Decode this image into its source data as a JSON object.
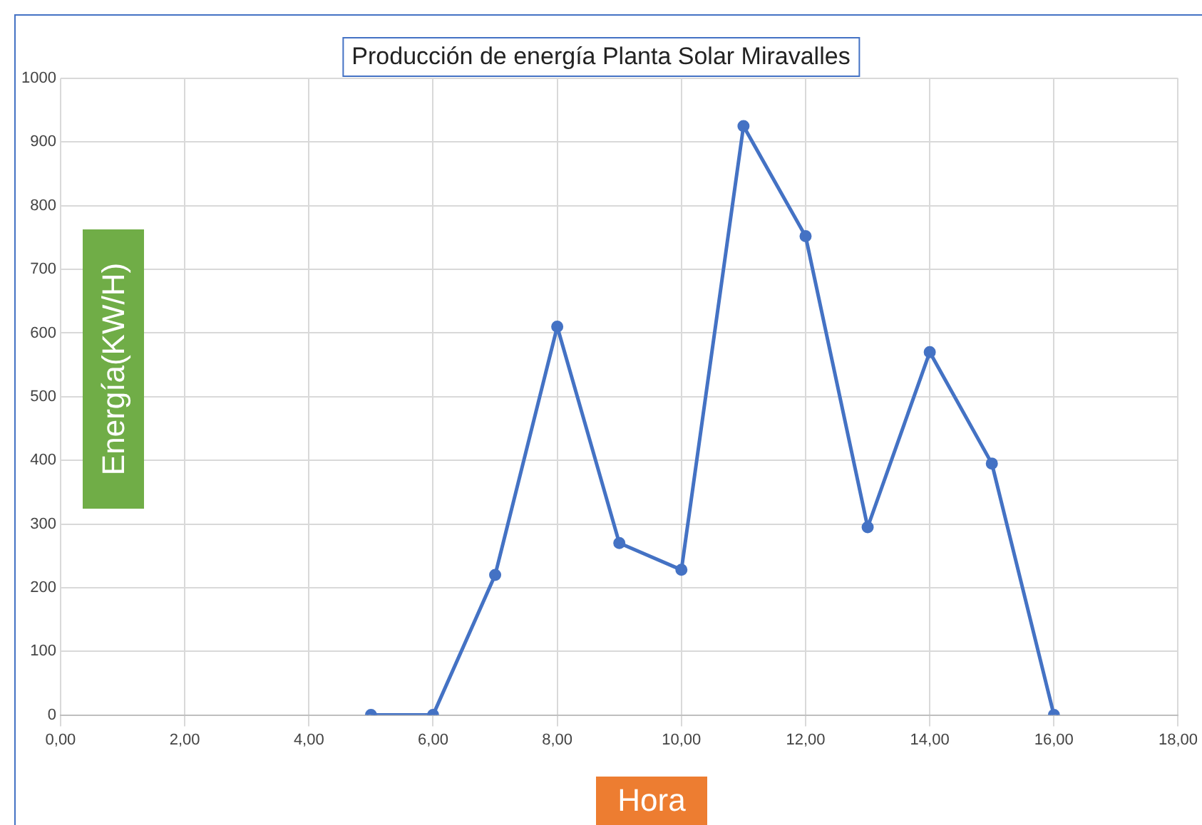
{
  "chart_data": {
    "type": "line",
    "title": "Producción de energía Planta Solar Miravalles",
    "xlabel": "Hora",
    "ylabel": "Energía(KW/H)",
    "x": [
      5,
      6,
      7,
      8,
      9,
      10,
      11,
      12,
      13,
      14,
      15,
      16
    ],
    "series": [
      {
        "color": "#4472c4",
        "values": [
          0,
          0,
          220,
          610,
          270,
          228,
          925,
          752,
          295,
          570,
          395,
          0
        ]
      }
    ],
    "xlim": [
      0,
      18
    ],
    "xticks": [
      {
        "value": 0,
        "label": "0,00"
      },
      {
        "value": 2,
        "label": "2,00"
      },
      {
        "value": 4,
        "label": "4,00"
      },
      {
        "value": 6,
        "label": "6,00"
      },
      {
        "value": 8,
        "label": "8,00"
      },
      {
        "value": 10,
        "label": "10,00"
      },
      {
        "value": 12,
        "label": "12,00"
      },
      {
        "value": 14,
        "label": "14,00"
      },
      {
        "value": 16,
        "label": "16,00"
      },
      {
        "value": 18,
        "label": "18,00"
      }
    ],
    "ylim": [
      0,
      1000
    ],
    "yticks": [
      0,
      100,
      200,
      300,
      400,
      500,
      600,
      700,
      800,
      900,
      1000
    ],
    "grid": true,
    "legend": false,
    "marker": "circle",
    "line_style": "solid"
  }
}
